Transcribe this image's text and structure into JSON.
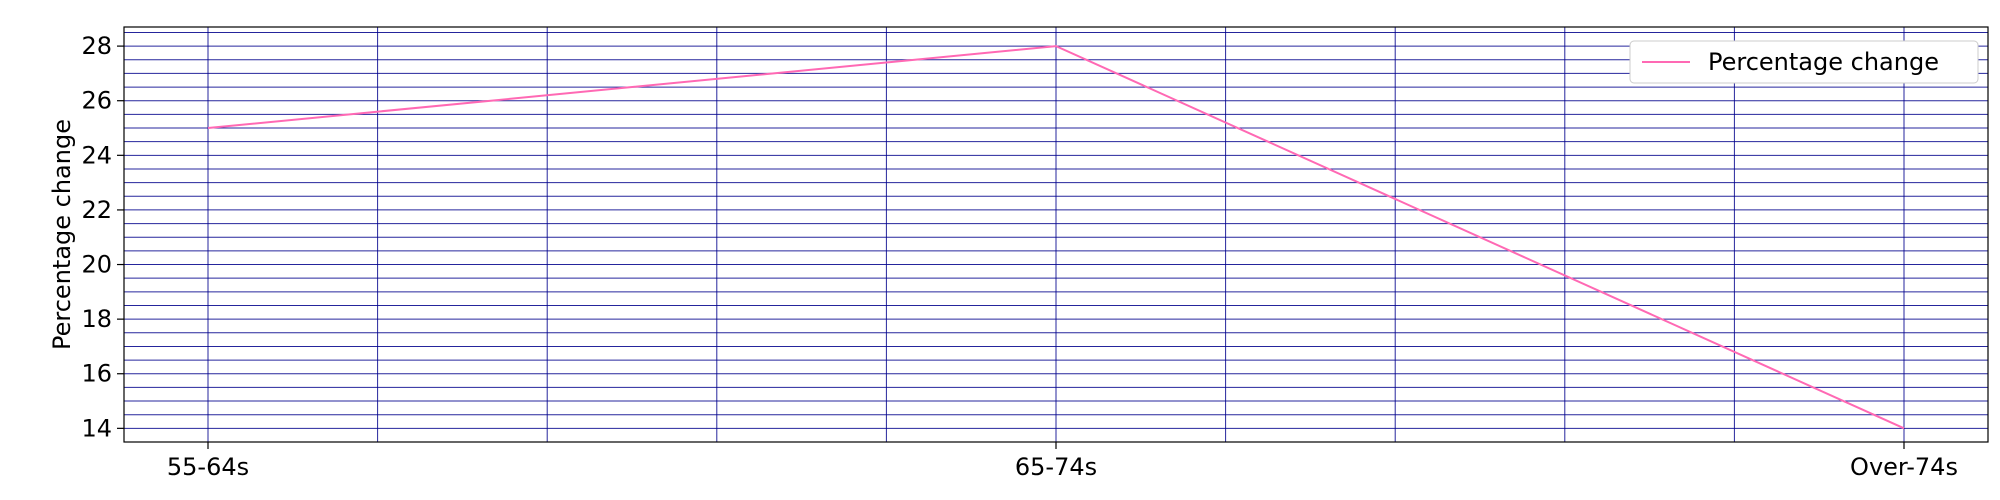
{
  "chart_data": {
    "type": "line",
    "title": "",
    "xlabel": "",
    "ylabel": "Percentage change",
    "categories": [
      "55-64s",
      "65-74s",
      "Over-74s"
    ],
    "series": [
      {
        "name": "Percentage change",
        "values": [
          25,
          28,
          14
        ],
        "color": "#ff69b4"
      }
    ],
    "ylim": [
      13.5,
      28.7
    ],
    "y_ticks": [
      14,
      16,
      18,
      20,
      22,
      24,
      26,
      28
    ],
    "y_minor_step": 0.5,
    "x_minor_divisions": 5,
    "grid": true,
    "grid_color": "#00008b",
    "legend_position": "top-right"
  }
}
